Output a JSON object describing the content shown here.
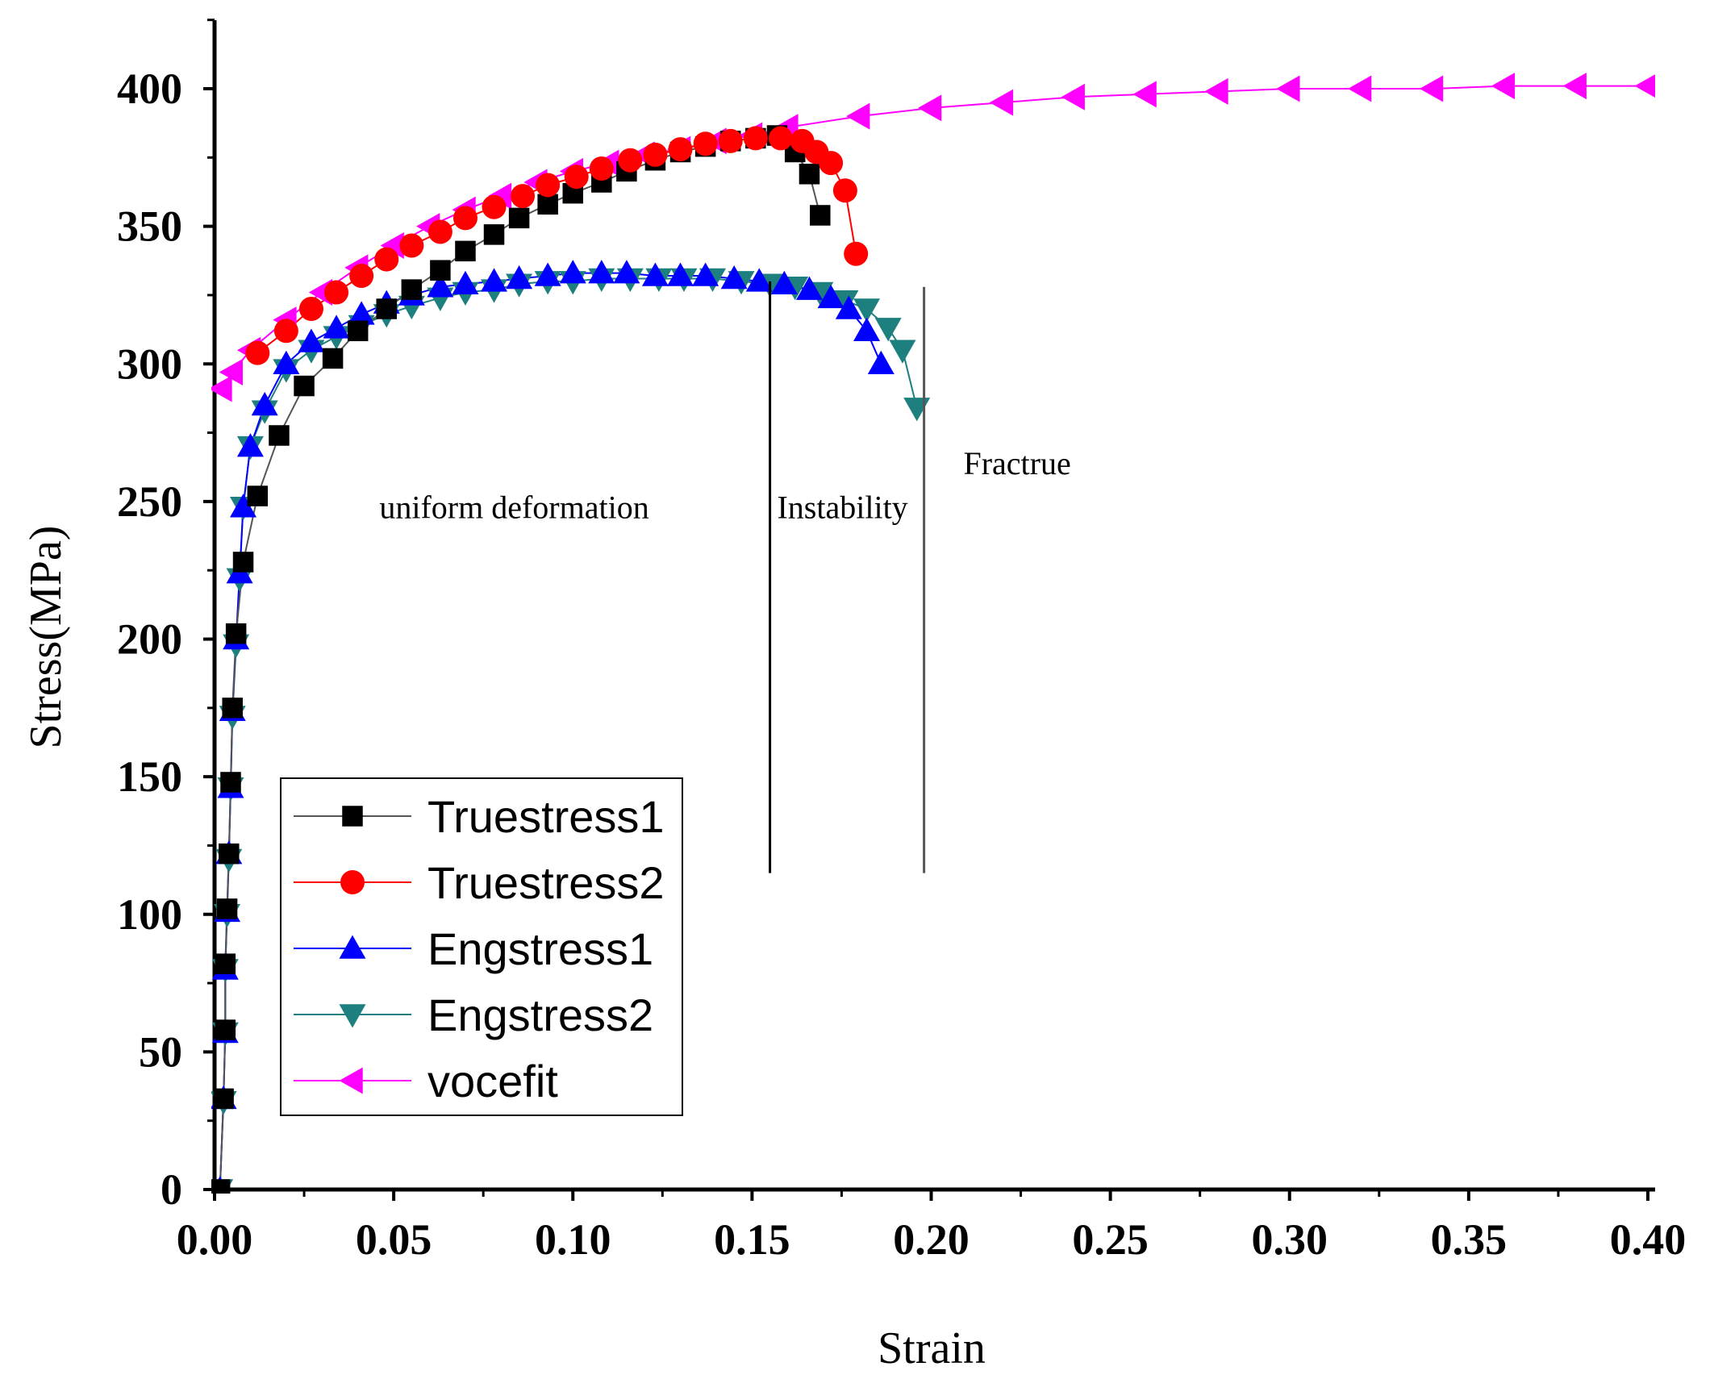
{
  "chart_data": {
    "type": "line",
    "xlabel": "Strain",
    "ylabel": "Stress(MPa)",
    "xlim": [
      0,
      0.4
    ],
    "ylim": [
      0,
      425
    ],
    "xticks": [
      "0.00",
      "0.05",
      "0.10",
      "0.15",
      "0.20",
      "0.25",
      "0.30",
      "0.35",
      "0.40"
    ],
    "xtick_values": [
      0,
      0.05,
      0.1,
      0.15,
      0.2,
      0.25,
      0.3,
      0.35,
      0.4
    ],
    "yticks": [
      "0",
      "50",
      "100",
      "150",
      "200",
      "250",
      "300",
      "350",
      "400"
    ],
    "ytick_values": [
      0,
      50,
      100,
      150,
      200,
      250,
      300,
      350,
      400
    ],
    "legend_position": "bottom-left",
    "series": [
      {
        "name": "Truestress1",
        "color": "#000000",
        "line_color": "#555555",
        "marker": "square",
        "x": [
          0.0015,
          0.0025,
          0.003,
          0.003,
          0.0035,
          0.004,
          0.0045,
          0.005,
          0.006,
          0.008,
          0.012,
          0.018,
          0.025,
          0.033,
          0.04,
          0.048,
          0.055,
          0.063,
          0.07,
          0.078,
          0.085,
          0.093,
          0.1,
          0.108,
          0.115,
          0.123,
          0.13,
          0.137,
          0.144,
          0.151,
          0.157,
          0.162,
          0.166,
          0.169
        ],
        "y": [
          0,
          33,
          58,
          82,
          102,
          122,
          148,
          175,
          202,
          228,
          252,
          274,
          292,
          302,
          312,
          320,
          327,
          334,
          341,
          347,
          353,
          358,
          362,
          366,
          370,
          374,
          377,
          379,
          381,
          382,
          383,
          377,
          369,
          354
        ]
      },
      {
        "name": "Truestress2",
        "color": "#ff0000",
        "line_color": "#ff0000",
        "marker": "circle",
        "x": [
          0.012,
          0.02,
          0.027,
          0.034,
          0.041,
          0.048,
          0.055,
          0.063,
          0.07,
          0.078,
          0.086,
          0.093,
          0.101,
          0.108,
          0.116,
          0.123,
          0.13,
          0.137,
          0.144,
          0.151,
          0.158,
          0.164,
          0.168,
          0.172,
          0.176,
          0.179
        ],
        "y": [
          304,
          312,
          320,
          326,
          332,
          338,
          343,
          348,
          353,
          357,
          361,
          365,
          368,
          371,
          374,
          376,
          378,
          380,
          381,
          382,
          382,
          381,
          377,
          373,
          363,
          340
        ]
      },
      {
        "name": "Engstress1",
        "color": "#0000ff",
        "line_color": "#0000ff",
        "marker": "triangle-up",
        "x": [
          0.0015,
          0.0025,
          0.003,
          0.003,
          0.0035,
          0.004,
          0.0045,
          0.005,
          0.006,
          0.007,
          0.008,
          0.01,
          0.014,
          0.02,
          0.027,
          0.034,
          0.041,
          0.048,
          0.055,
          0.063,
          0.07,
          0.078,
          0.085,
          0.093,
          0.1,
          0.108,
          0.115,
          0.123,
          0.13,
          0.137,
          0.145,
          0.152,
          0.159,
          0.166,
          0.172,
          0.177,
          0.182,
          0.186
        ],
        "y": [
          0,
          33,
          57,
          80,
          101,
          122,
          146,
          174,
          200,
          224,
          248,
          270,
          285,
          300,
          308,
          313,
          318,
          322,
          325,
          328,
          329,
          330,
          331,
          332,
          333,
          333,
          333,
          332,
          332,
          332,
          331,
          330,
          329,
          327,
          324,
          320,
          312,
          300
        ]
      },
      {
        "name": "Engstress2",
        "color": "#1e7f7f",
        "line_color": "#1e7f7f",
        "marker": "triangle-down",
        "x": [
          0.0015,
          0.0025,
          0.003,
          0.003,
          0.0035,
          0.004,
          0.0045,
          0.005,
          0.006,
          0.007,
          0.008,
          0.01,
          0.014,
          0.02,
          0.027,
          0.034,
          0.041,
          0.048,
          0.055,
          0.063,
          0.07,
          0.078,
          0.085,
          0.093,
          0.1,
          0.108,
          0.116,
          0.124,
          0.131,
          0.139,
          0.147,
          0.155,
          0.162,
          0.169,
          0.176,
          0.182,
          0.188,
          0.192,
          0.196
        ],
        "y": [
          0,
          32,
          57,
          80,
          100,
          120,
          146,
          172,
          198,
          222,
          248,
          270,
          283,
          298,
          305,
          310,
          314,
          318,
          321,
          324,
          326,
          327,
          329,
          330,
          330,
          331,
          331,
          331,
          331,
          331,
          330,
          329,
          328,
          326,
          323,
          320,
          313,
          305,
          284
        ]
      },
      {
        "name": "vocefit",
        "color": "#ff00ff",
        "line_color": "#ff00ff",
        "marker": "triangle-left",
        "x": [
          0.002,
          0.005,
          0.01,
          0.02,
          0.03,
          0.04,
          0.05,
          0.06,
          0.07,
          0.08,
          0.09,
          0.1,
          0.11,
          0.12,
          0.13,
          0.14,
          0.15,
          0.16,
          0.18,
          0.2,
          0.22,
          0.24,
          0.26,
          0.28,
          0.3,
          0.32,
          0.34,
          0.36,
          0.38,
          0.4
        ],
        "y": [
          291,
          297,
          305,
          316,
          326,
          335,
          343,
          350,
          356,
          361,
          366,
          370,
          373,
          376,
          378,
          381,
          383,
          386,
          390,
          393,
          395,
          397,
          398,
          399,
          400,
          400,
          400,
          401,
          401,
          401
        ]
      }
    ],
    "vlines": [
      {
        "x": 0.155,
        "y0": 115,
        "y1": 330
      },
      {
        "x": 0.198,
        "y0": 115,
        "y1": 328
      }
    ],
    "annotations": [
      {
        "text": "uniform deformation",
        "x": 0.046,
        "y": 244
      },
      {
        "text": "Instability",
        "x": 0.157,
        "y": 244
      },
      {
        "text": "Fractrue",
        "x": 0.209,
        "y": 260
      }
    ]
  }
}
